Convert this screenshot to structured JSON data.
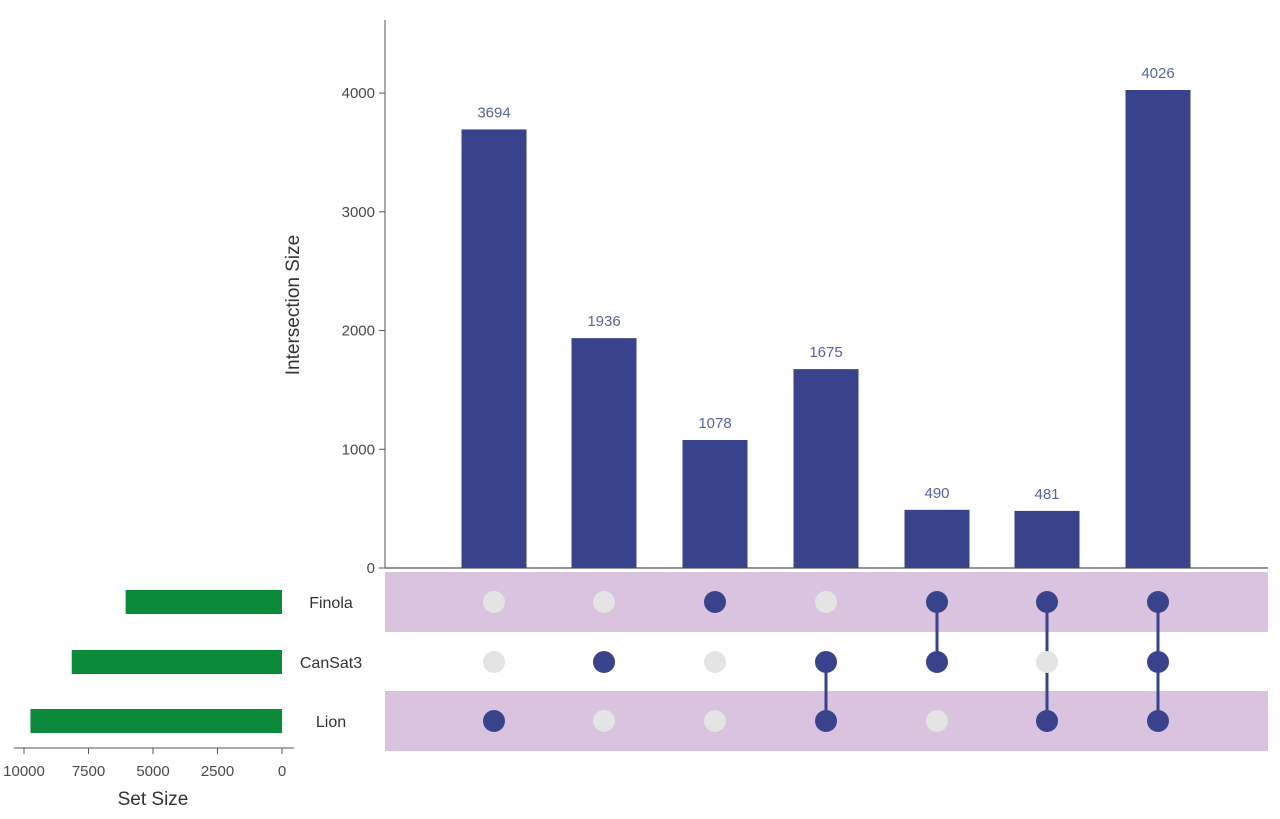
{
  "chart_data": {
    "type": "upset",
    "ylabel": "Intersection Size",
    "xlabel": "Set Size",
    "ylim": [
      0,
      4600
    ],
    "y_ticks": [
      0,
      1000,
      2000,
      3000,
      4000
    ],
    "set_size_ticks": [
      10000,
      7500,
      5000,
      2500,
      0
    ],
    "set_size_lim": [
      0,
      10700
    ],
    "sets": [
      {
        "name": "Finola",
        "size": 6060
      },
      {
        "name": "CanSat3",
        "size": 8150
      },
      {
        "name": "Lion",
        "size": 9750
      }
    ],
    "intersections": [
      {
        "sets": [
          "Lion"
        ],
        "value": 3694,
        "label": "3694"
      },
      {
        "sets": [
          "CanSat3"
        ],
        "value": 1936,
        "label": "1936"
      },
      {
        "sets": [
          "Finola"
        ],
        "value": 1078,
        "label": "1078"
      },
      {
        "sets": [
          "CanSat3",
          "Lion"
        ],
        "value": 1675,
        "label": "1675"
      },
      {
        "sets": [
          "Finola",
          "CanSat3"
        ],
        "value": 490,
        "label": "490"
      },
      {
        "sets": [
          "Finola",
          "Lion"
        ],
        "value": 481,
        "label": "481"
      },
      {
        "sets": [
          "Finola",
          "CanSat3",
          "Lion"
        ],
        "value": 4026,
        "label": "4026"
      }
    ],
    "colors": {
      "bars": "#38438c",
      "set_bars": "#0c8a3c",
      "dot_active": "#38438c",
      "dot_inactive": "#e4e4e4",
      "stripe": "#d9c3df",
      "axis": "#555555"
    }
  }
}
